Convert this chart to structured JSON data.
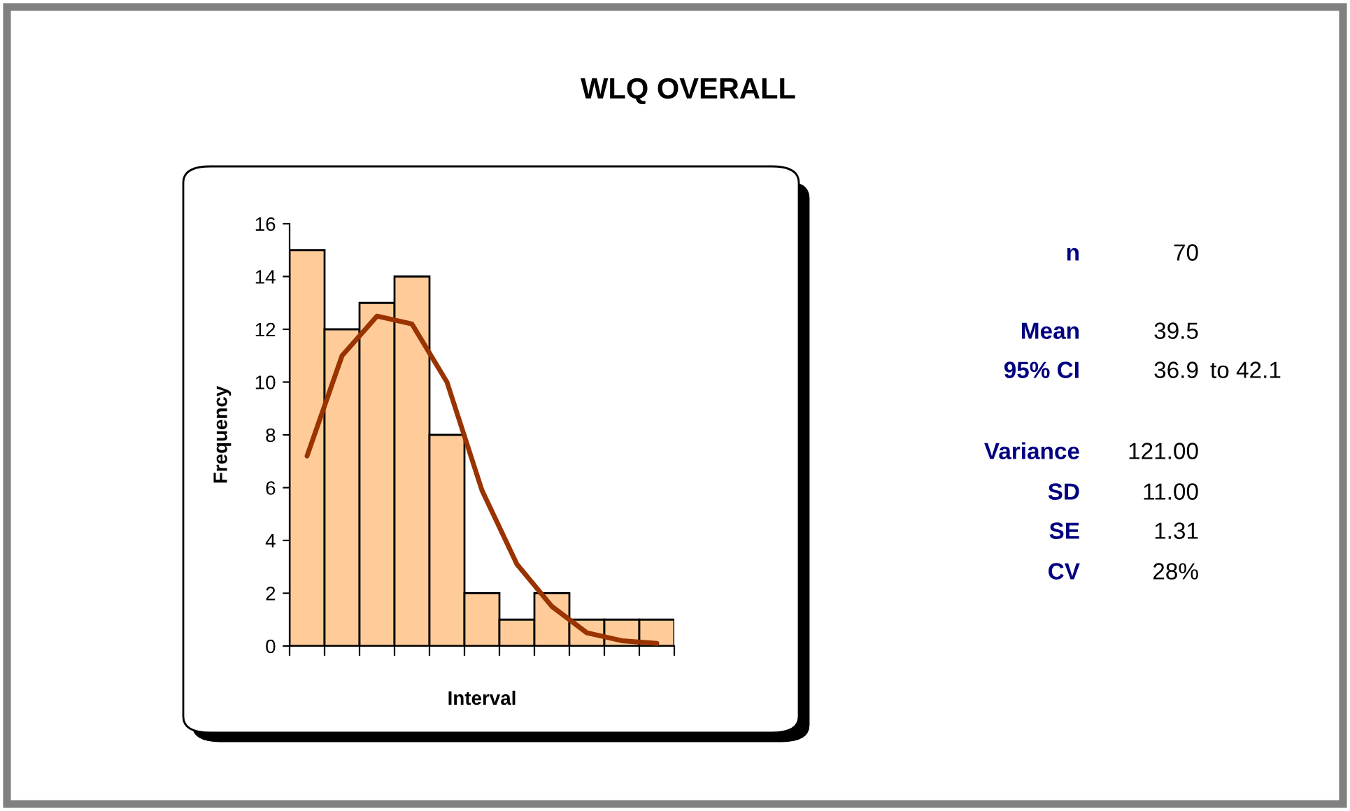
{
  "chart_data": [
    {
      "type": "bar",
      "title": "WLQ OVERALL",
      "xlabel": "Interval",
      "ylabel": "Frequency",
      "categories": [
        null,
        null,
        null,
        null,
        null,
        null,
        null,
        null,
        null,
        null,
        null
      ],
      "series": [
        {
          "color": "#ffcc99",
          "values": [
            15,
            12,
            13,
            14,
            8,
            2,
            1,
            2,
            1,
            1,
            1
          ]
        },
        {
          "type": "line",
          "color": "#993300",
          "values": [
            7.2,
            11,
            12.5,
            12.2,
            10,
            5.9,
            3.1,
            1.5,
            0.5,
            0.2,
            0.1
          ]
        }
      ],
      "ylim": [
        0,
        16
      ],
      "yticks": [
        0,
        2,
        4,
        6,
        8,
        10,
        12,
        14,
        16
      ],
      "grid": false,
      "legend": false,
      "tick_labels": "y",
      "marker": "none",
      "line_style": "solid"
    },
    {
      "type": "other",
      "annotations": [
        "n",
        "70",
        "Mean",
        "39.5",
        "95% CI",
        "36.9",
        "to 42.1",
        "Variance",
        "121.00",
        "SD",
        "11.00",
        "SE",
        "1.31",
        "CV",
        "28%"
      ]
    }
  ]
}
